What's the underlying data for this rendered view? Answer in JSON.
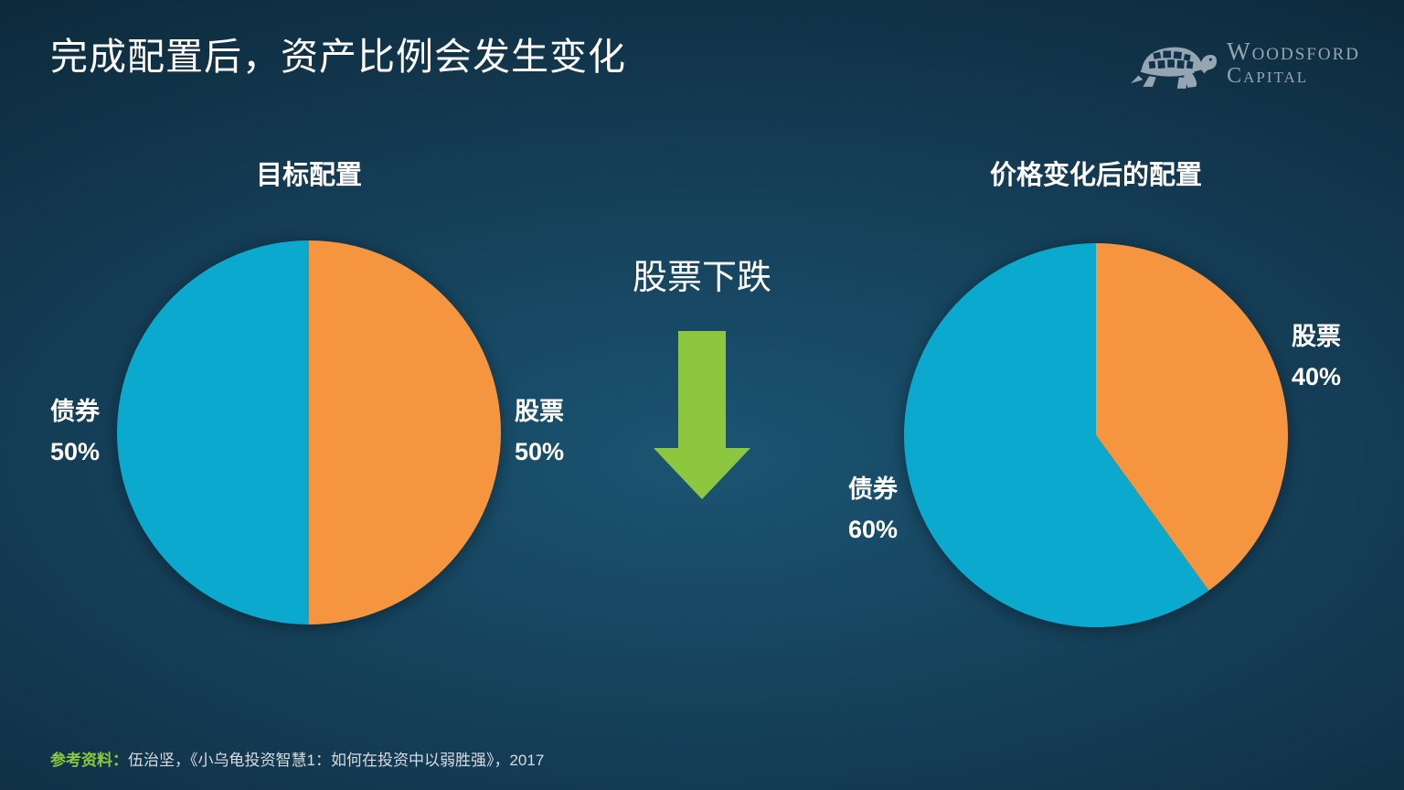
{
  "slide_title": "完成配置后，资产比例会发生变化",
  "logo": {
    "icon": "turtle-icon",
    "name_line1": "Woodsford",
    "name_line2": "Capital",
    "color": "#96A5B2"
  },
  "annotation": {
    "label": "股票下跌",
    "arrow_icon": "down-arrow",
    "arrow_color": "#8DC63F"
  },
  "footer": {
    "label": "参考资料：",
    "label_color": "#8DC63F",
    "citation": "伍治坚，《小乌龟投资智慧1：如何在投资中以弱胜强》，2017"
  },
  "palette": {
    "stocks_orange": "#F6953F",
    "bonds_blue": "#0CA9CF",
    "background_center": "#1B5472",
    "background_edge": "#0A2232",
    "text": "#FFFFFF"
  },
  "chart_data": [
    {
      "type": "pie",
      "title": "目标配置",
      "start_angle_deg": 0,
      "direction": "clockwise",
      "legend_position": "none",
      "slices": [
        {
          "label": "股票",
          "value": 50,
          "color": "#F6953F",
          "label_side": "right"
        },
        {
          "label": "债券",
          "value": 50,
          "color": "#0CA9CF",
          "label_side": "left"
        }
      ]
    },
    {
      "type": "pie",
      "title": "价格变化后的配置",
      "start_angle_deg": 0,
      "direction": "clockwise",
      "legend_position": "none",
      "slices": [
        {
          "label": "股票",
          "value": 40,
          "color": "#F6953F",
          "label_side": "right"
        },
        {
          "label": "债券",
          "value": 60,
          "color": "#0CA9CF",
          "label_side": "left"
        }
      ]
    }
  ]
}
